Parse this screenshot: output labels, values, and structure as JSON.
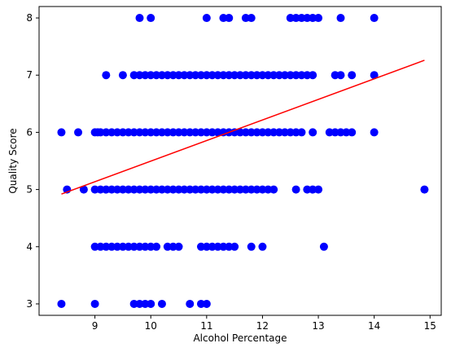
{
  "chart_data": {
    "type": "scatter",
    "title": "",
    "xlabel": "Alcohol Percentage",
    "ylabel": "Quality Score",
    "xlim": [
      8.0,
      15.2
    ],
    "ylim": [
      2.8,
      8.2
    ],
    "x_ticks": [
      9,
      10,
      11,
      12,
      13,
      14,
      15
    ],
    "y_ticks": [
      3,
      4,
      5,
      6,
      7,
      8
    ],
    "grid": false,
    "legend": "none",
    "point_color": "#0000ff",
    "line_color": "#ff0000",
    "series": [
      {
        "kind": "points",
        "points": [
          [
            8.4,
            3
          ],
          [
            9.0,
            3
          ],
          [
            9.7,
            3
          ],
          [
            9.8,
            3
          ],
          [
            9.9,
            3
          ],
          [
            10.0,
            3
          ],
          [
            10.2,
            3
          ],
          [
            10.7,
            3
          ],
          [
            10.9,
            3
          ],
          [
            11.0,
            3
          ],
          [
            9.0,
            4
          ],
          [
            9.1,
            4
          ],
          [
            9.2,
            4
          ],
          [
            9.3,
            4
          ],
          [
            9.4,
            4
          ],
          [
            9.5,
            4
          ],
          [
            9.6,
            4
          ],
          [
            9.7,
            4
          ],
          [
            9.8,
            4
          ],
          [
            9.9,
            4
          ],
          [
            10.0,
            4
          ],
          [
            10.1,
            4
          ],
          [
            10.3,
            4
          ],
          [
            10.4,
            4
          ],
          [
            10.5,
            4
          ],
          [
            10.9,
            4
          ],
          [
            11.0,
            4
          ],
          [
            11.1,
            4
          ],
          [
            11.2,
            4
          ],
          [
            11.3,
            4
          ],
          [
            11.4,
            4
          ],
          [
            11.5,
            4
          ],
          [
            11.8,
            4
          ],
          [
            12.0,
            4
          ],
          [
            13.1,
            4
          ],
          [
            8.5,
            5
          ],
          [
            8.8,
            5
          ],
          [
            9.0,
            5
          ],
          [
            9.1,
            5
          ],
          [
            9.2,
            5
          ],
          [
            9.3,
            5
          ],
          [
            9.4,
            5
          ],
          [
            9.5,
            5
          ],
          [
            9.6,
            5
          ],
          [
            9.7,
            5
          ],
          [
            9.8,
            5
          ],
          [
            9.9,
            5
          ],
          [
            10.0,
            5
          ],
          [
            10.1,
            5
          ],
          [
            10.2,
            5
          ],
          [
            10.3,
            5
          ],
          [
            10.4,
            5
          ],
          [
            10.5,
            5
          ],
          [
            10.6,
            5
          ],
          [
            10.7,
            5
          ],
          [
            10.8,
            5
          ],
          [
            10.9,
            5
          ],
          [
            11.0,
            5
          ],
          [
            11.1,
            5
          ],
          [
            11.2,
            5
          ],
          [
            11.3,
            5
          ],
          [
            11.4,
            5
          ],
          [
            11.5,
            5
          ],
          [
            11.6,
            5
          ],
          [
            11.7,
            5
          ],
          [
            11.8,
            5
          ],
          [
            11.9,
            5
          ],
          [
            12.0,
            5
          ],
          [
            12.1,
            5
          ],
          [
            12.2,
            5
          ],
          [
            12.6,
            5
          ],
          [
            12.8,
            5
          ],
          [
            12.9,
            5
          ],
          [
            13.0,
            5
          ],
          [
            14.9,
            5
          ],
          [
            8.4,
            6
          ],
          [
            8.7,
            6
          ],
          [
            9.0,
            6
          ],
          [
            9.05,
            6
          ],
          [
            9.1,
            6
          ],
          [
            9.2,
            6
          ],
          [
            9.3,
            6
          ],
          [
            9.4,
            6
          ],
          [
            9.5,
            6
          ],
          [
            9.6,
            6
          ],
          [
            9.7,
            6
          ],
          [
            9.8,
            6
          ],
          [
            9.9,
            6
          ],
          [
            10.0,
            6
          ],
          [
            10.1,
            6
          ],
          [
            10.2,
            6
          ],
          [
            10.3,
            6
          ],
          [
            10.4,
            6
          ],
          [
            10.5,
            6
          ],
          [
            10.6,
            6
          ],
          [
            10.7,
            6
          ],
          [
            10.8,
            6
          ],
          [
            10.9,
            6
          ],
          [
            11.0,
            6
          ],
          [
            11.1,
            6
          ],
          [
            11.2,
            6
          ],
          [
            11.3,
            6
          ],
          [
            11.4,
            6
          ],
          [
            11.5,
            6
          ],
          [
            11.6,
            6
          ],
          [
            11.7,
            6
          ],
          [
            11.8,
            6
          ],
          [
            11.9,
            6
          ],
          [
            12.0,
            6
          ],
          [
            12.1,
            6
          ],
          [
            12.2,
            6
          ],
          [
            12.3,
            6
          ],
          [
            12.4,
            6
          ],
          [
            12.5,
            6
          ],
          [
            12.6,
            6
          ],
          [
            12.7,
            6
          ],
          [
            12.9,
            6
          ],
          [
            13.2,
            6
          ],
          [
            13.3,
            6
          ],
          [
            13.4,
            6
          ],
          [
            13.5,
            6
          ],
          [
            13.6,
            6
          ],
          [
            14.0,
            6
          ],
          [
            9.2,
            7
          ],
          [
            9.5,
            7
          ],
          [
            9.7,
            7
          ],
          [
            9.8,
            7
          ],
          [
            9.9,
            7
          ],
          [
            10.0,
            7
          ],
          [
            10.1,
            7
          ],
          [
            10.2,
            7
          ],
          [
            10.3,
            7
          ],
          [
            10.4,
            7
          ],
          [
            10.5,
            7
          ],
          [
            10.6,
            7
          ],
          [
            10.7,
            7
          ],
          [
            10.8,
            7
          ],
          [
            10.9,
            7
          ],
          [
            11.0,
            7
          ],
          [
            11.1,
            7
          ],
          [
            11.2,
            7
          ],
          [
            11.3,
            7
          ],
          [
            11.4,
            7
          ],
          [
            11.5,
            7
          ],
          [
            11.6,
            7
          ],
          [
            11.7,
            7
          ],
          [
            11.8,
            7
          ],
          [
            11.9,
            7
          ],
          [
            12.0,
            7
          ],
          [
            12.1,
            7
          ],
          [
            12.2,
            7
          ],
          [
            12.3,
            7
          ],
          [
            12.4,
            7
          ],
          [
            12.5,
            7
          ],
          [
            12.6,
            7
          ],
          [
            12.7,
            7
          ],
          [
            12.8,
            7
          ],
          [
            12.9,
            7
          ],
          [
            13.3,
            7
          ],
          [
            13.4,
            7
          ],
          [
            13.6,
            7
          ],
          [
            14.0,
            7
          ],
          [
            9.8,
            8
          ],
          [
            10.0,
            8
          ],
          [
            11.0,
            8
          ],
          [
            11.3,
            8
          ],
          [
            11.4,
            8
          ],
          [
            11.7,
            8
          ],
          [
            11.8,
            8
          ],
          [
            12.5,
            8
          ],
          [
            12.6,
            8
          ],
          [
            12.7,
            8
          ],
          [
            12.8,
            8
          ],
          [
            12.9,
            8
          ],
          [
            13.0,
            8
          ],
          [
            13.4,
            8
          ],
          [
            14.0,
            8
          ]
        ]
      },
      {
        "kind": "line",
        "points": [
          [
            8.4,
            4.92
          ],
          [
            14.9,
            7.26
          ]
        ]
      }
    ]
  }
}
